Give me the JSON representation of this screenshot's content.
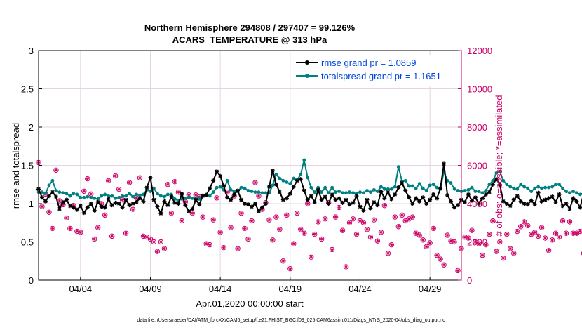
{
  "title_line1": "Northern Hemisphere 294808 / 297407 = 99.126%",
  "title_line2": "ACARS_TEMPERATURE @ 313 hPa",
  "footer": "data file: /Users/raeder/DAI/ATM_forcXX/CAM6_setup/f.e21.FHIST_BGC.f09_025.CAM6assim.011/Diags_NTrS_2020-04/obs_diag_output.nc",
  "colors": {
    "rmse": "#000000",
    "spread": "#008080",
    "obs": "#CC0066",
    "legend_text": "#0044DD",
    "grid": "#E6D3E3"
  },
  "chart_data": {
    "type": "line",
    "xlabel": "Apr.01,2020 00:00:00 start",
    "ylabel": "rmse and totalspread",
    "y2label": "# of obs: o=possible; *=assimilated",
    "ylim": [
      0,
      3
    ],
    "y2lim": [
      0,
      12000
    ],
    "xlim": [
      1.0,
      31.25
    ],
    "x_ticks": [
      4,
      9,
      14,
      19,
      24,
      29
    ],
    "x_tick_labels": [
      "04/04",
      "04/09",
      "04/14",
      "04/19",
      "04/24",
      "04/29"
    ],
    "y_ticks": [
      0,
      0.5,
      1,
      1.5,
      2,
      2.5,
      3
    ],
    "y_tick_labels": [
      "0",
      "0.5",
      "1",
      "1.5",
      "2",
      "2.5",
      "3"
    ],
    "y2_ticks": [
      0,
      2000,
      4000,
      6000,
      8000,
      10000,
      12000
    ],
    "y2_tick_labels": [
      "0",
      "2000",
      "4000",
      "6000",
      "8000",
      "10000",
      "12000"
    ],
    "grid": true,
    "legend_position": "top-right",
    "x_start": 1.0,
    "x_step": 0.25,
    "series": [
      {
        "name": "rmse grand pr = 1.0859",
        "axis": "left",
        "values": [
          1.19,
          1.08,
          1.03,
          1.1,
          1.15,
          1.09,
          0.93,
          1.02,
          1.05,
          0.97,
          0.95,
          0.92,
          0.97,
          0.88,
          0.95,
          1.0,
          0.91,
          1.02,
          0.96,
          0.95,
          1.06,
          0.98,
          1.01,
          1.0,
          0.95,
          1.05,
          0.98,
          1.0,
          1.02,
          1.07,
          1.03,
          1.21,
          1.34,
          1.05,
          0.96,
          0.87,
          1.03,
          0.98,
          1.09,
          1.01,
          1.0,
          1.13,
          0.98,
          0.9,
          0.93,
          1.05,
          0.99,
          1.1,
          1.11,
          1.2,
          1.3,
          1.42,
          1.36,
          1.23,
          1.08,
          1.05,
          1.12,
          1.17,
          1.05,
          1.0,
          0.99,
          0.96,
          1.0,
          0.9,
          0.95,
          1.0,
          1.22,
          1.43,
          1.25,
          1.15,
          1.05,
          1.07,
          1.13,
          1.22,
          1.3,
          1.32,
          1.17,
          1.05,
          1.1,
          1.02,
          1.18,
          1.05,
          1.09,
          1.0,
          1.12,
          1.05,
          1.07,
          1.01,
          1.05,
          0.99,
          1.01,
          1.1,
          0.96,
          0.91,
          1.05,
          0.94,
          1.02,
          0.98,
          1.16,
          1.07,
          1.15,
          1.06,
          1.12,
          1.21,
          1.27,
          1.17,
          1.08,
          1.0,
          1.07,
          1.03,
          1.08,
          1.0,
          1.05,
          1.12,
          1.07,
          1.2,
          1.52,
          1.11,
          1.03,
          0.95,
          0.98,
          1.05,
          1.02,
          1.12,
          1.04,
          1.08,
          1.0,
          1.07,
          1.12,
          1.15,
          1.25,
          1.32,
          1.25,
          1.03,
          1.0,
          0.97,
          1.05,
          1.1,
          1.03,
          1.0,
          0.99,
          1.04,
          0.99,
          1.14,
          1.03,
          1.05,
          1.07,
          1.09,
          1.02,
          1.12,
          0.97,
          1.0,
          0.93,
          1.07,
          1.03,
          0.95,
          1.13,
          0.88,
          1.04,
          1.0,
          0.93,
          1.01,
          0.95,
          0.99,
          0.89,
          0.92,
          0.88,
          0.9,
          1.05,
          1.49,
          1.54,
          1.46,
          1.17,
          1.19,
          1.2,
          1.24,
          1.2,
          1.16,
          1.18,
          1.17,
          1.19,
          1.18,
          1.19
        ]
      },
      {
        "name": "totalspread grand pr = 1.1651",
        "axis": "left",
        "values": [
          1.15,
          1.15,
          1.13,
          1.24,
          1.3,
          1.17,
          1.15,
          1.14,
          1.13,
          1.1,
          1.13,
          1.12,
          1.08,
          1.08,
          1.09,
          1.08,
          1.07,
          1.06,
          1.1,
          1.12,
          1.1,
          1.1,
          1.07,
          1.08,
          1.1,
          1.1,
          1.13,
          1.09,
          1.12,
          1.11,
          1.12,
          1.18,
          1.16,
          1.2,
          1.13,
          1.1,
          1.09,
          1.12,
          1.12,
          1.06,
          1.04,
          1.06,
          1.07,
          1.08,
          1.07,
          1.07,
          1.06,
          1.11,
          1.12,
          1.1,
          1.15,
          1.21,
          1.22,
          1.18,
          1.3,
          1.18,
          1.16,
          1.16,
          1.21,
          1.2,
          1.17,
          1.16,
          1.15,
          1.15,
          1.14,
          1.14,
          1.14,
          1.24,
          1.38,
          1.33,
          1.3,
          1.28,
          1.26,
          1.33,
          1.31,
          1.38,
          1.57,
          1.34,
          1.21,
          1.15,
          1.21,
          1.15,
          1.21,
          1.14,
          1.21,
          1.15,
          1.16,
          1.14,
          1.14,
          1.15,
          1.14,
          1.13,
          1.15,
          1.14,
          1.17,
          1.15,
          1.18,
          1.16,
          1.22,
          1.19,
          1.19,
          1.19,
          1.22,
          1.48,
          1.29,
          1.3,
          1.23,
          1.23,
          1.2,
          1.26,
          1.2,
          1.17,
          1.24,
          1.25,
          1.21,
          1.19,
          1.42,
          1.3,
          1.27,
          1.19,
          1.17,
          1.16,
          1.17,
          1.18,
          1.21,
          1.16,
          1.16,
          1.14,
          1.17,
          1.25,
          1.3,
          1.4,
          1.42,
          1.3,
          1.25,
          1.22,
          1.2,
          1.19,
          1.25,
          1.22,
          1.2,
          1.16,
          1.2,
          1.22,
          1.2,
          1.21,
          1.21,
          1.22,
          1.25,
          1.25,
          1.2,
          1.16,
          1.14,
          1.16,
          1.14,
          1.12,
          1.13,
          1.12,
          1.11,
          1.12,
          1.12,
          1.13,
          1.1,
          1.13,
          1.14,
          1.11,
          1.08,
          1.11,
          1.18,
          1.17,
          1.27,
          1.23,
          1.18,
          1.22,
          1.24,
          1.38,
          1.43,
          1.42,
          1.24,
          1.24,
          1.23,
          1.23
        ]
      }
    ],
    "obs": {
      "axis": "right",
      "x_start": 1.0,
      "x_step": 0.25,
      "values": [
        6150,
        3850,
        4500,
        3550,
        2700,
        5750,
        4150,
        3950,
        3250,
        2700,
        3900,
        2550,
        2500,
        4650,
        5300,
        4500,
        2150,
        2750,
        4000,
        3400,
        5200,
        2300,
        5450,
        4750,
        4200,
        2450,
        5100,
        3700,
        4300,
        5350,
        2300,
        2250,
        2150,
        2000,
        1500,
        2000,
        1650,
        5000,
        3500,
        5150,
        4600,
        3100,
        4100,
        4450,
        3500,
        4450,
        4350,
        3300,
        1900,
        1850,
        3150,
        4300,
        2500,
        1700,
        4600,
        2750,
        4400,
        1650,
        3500,
        2700,
        2150,
        3100,
        5100,
        4400,
        3700,
        4050,
        3150,
        2100,
        3300,
        2650,
        1000,
        3400,
        600,
        1900,
        3500,
        2650,
        2450,
        4000,
        1200,
        2400,
        3050,
        2150,
        3200,
        4050,
        1600,
        3300,
        3800,
        2600,
        700,
        3000,
        3200,
        2400,
        3100,
        3000,
        2650,
        2250,
        3150,
        2050,
        2500,
        3900,
        1400,
        1850,
        3300,
        2800,
        3400,
        3100,
        3200,
        3300,
        2450,
        2350,
        2100,
        1750,
        1950,
        2700,
        1300,
        1100,
        800,
        2350,
        2050,
        2000,
        500,
        1650,
        2250,
        2200,
        2600,
        2000,
        1900,
        1300,
        1850,
        2400,
        3100,
        1500,
        2000,
        1150,
        2400,
        1650,
        1400,
        2550,
        2800,
        3050,
        2850,
        2400,
        2500,
        2300,
        2750,
        2200,
        1550,
        2100,
        2450,
        2250,
        3100,
        2450,
        3050,
        2450,
        2450,
        2550,
        1400,
        1450,
        2100,
        1950,
        1500,
        2150,
        2150,
        1300,
        3200,
        800,
        2400,
        1900,
        2000,
        1150,
        1400,
        1500,
        3150,
        3350,
        1150,
        1950,
        2200,
        2050,
        2100,
        2400,
        2500,
        1800,
        1050,
        1650,
        1100,
        700,
        2000,
        2600,
        2050,
        2550
      ]
    }
  }
}
